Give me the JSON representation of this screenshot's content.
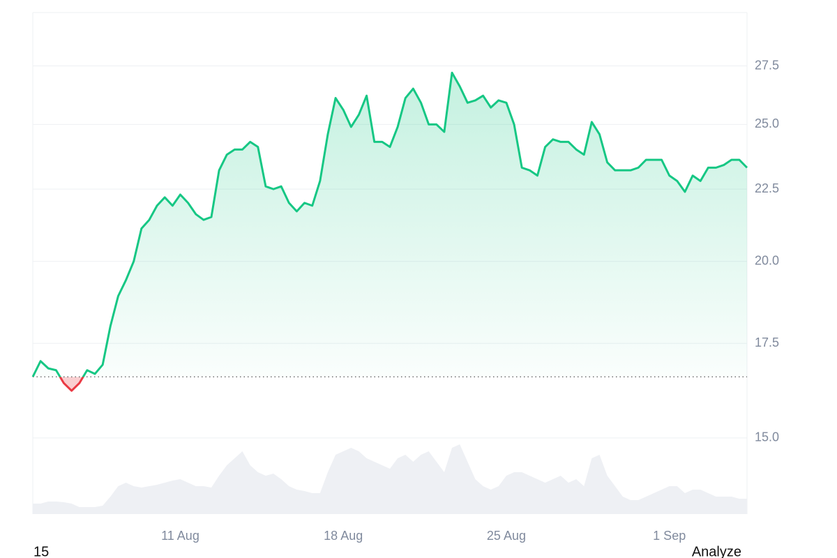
{
  "chart_data": {
    "type": "line",
    "log_scale": true,
    "grid": true,
    "color": "#16c784",
    "down_color": "#ea3943",
    "volume_color": "#eef0f4",
    "baseline": 16.57,
    "categories": [
      null,
      null,
      null,
      null,
      null,
      null,
      null,
      null,
      null,
      null,
      null,
      null,
      null,
      null,
      null,
      null,
      null,
      null,
      null,
      "11 Aug",
      null,
      null,
      null,
      null,
      null,
      null,
      null,
      null,
      null,
      null,
      null,
      null,
      null,
      null,
      null,
      null,
      null,
      null,
      null,
      null,
      "18 Aug",
      null,
      null,
      null,
      null,
      null,
      null,
      null,
      null,
      null,
      null,
      null,
      null,
      null,
      null,
      null,
      null,
      null,
      null,
      null,
      null,
      "25 Aug",
      null,
      null,
      null,
      null,
      null,
      null,
      null,
      null,
      null,
      null,
      null,
      null,
      null,
      null,
      null,
      null,
      null,
      null,
      null,
      null,
      "1 Sep",
      null,
      null,
      null,
      null,
      null,
      null,
      null,
      null,
      null,
      null
    ],
    "values": [
      16.57,
      17.0,
      16.8,
      16.75,
      16.4,
      16.2,
      16.4,
      16.75,
      16.65,
      16.9,
      18.0,
      18.9,
      19.4,
      20.0,
      21.1,
      21.4,
      21.9,
      22.2,
      21.9,
      22.3,
      22.0,
      21.6,
      21.4,
      21.5,
      23.2,
      23.8,
      24.0,
      24.0,
      24.3,
      24.1,
      22.6,
      22.5,
      22.6,
      22.0,
      21.7,
      22.0,
      21.9,
      22.8,
      24.6,
      26.1,
      25.6,
      24.9,
      25.4,
      26.2,
      24.3,
      24.3,
      24.1,
      24.9,
      26.1,
      26.5,
      25.9,
      25.0,
      25.0,
      24.7,
      27.2,
      26.6,
      25.9,
      26.0,
      26.2,
      25.7,
      26.0,
      25.9,
      25.0,
      23.3,
      23.2,
      23.0,
      24.1,
      24.4,
      24.3,
      24.3,
      24.0,
      23.8,
      25.1,
      24.6,
      23.5,
      23.2,
      23.2,
      23.2,
      23.3,
      23.6,
      23.6,
      23.6,
      23.0,
      22.8,
      22.4,
      23.0,
      22.8,
      23.3,
      23.3,
      23.4,
      23.6,
      23.6,
      23.3
    ],
    "volume": [
      15,
      15,
      18,
      18,
      17,
      15,
      10,
      10,
      10,
      12,
      25,
      40,
      45,
      40,
      38,
      40,
      42,
      45,
      48,
      50,
      45,
      40,
      40,
      38,
      55,
      70,
      80,
      90,
      70,
      60,
      55,
      58,
      50,
      40,
      35,
      33,
      30,
      30,
      60,
      85,
      90,
      95,
      90,
      80,
      75,
      70,
      65,
      80,
      85,
      75,
      85,
      90,
      75,
      60,
      95,
      100,
      75,
      50,
      40,
      35,
      40,
      55,
      60,
      60,
      55,
      50,
      45,
      50,
      55,
      45,
      50,
      40,
      80,
      85,
      55,
      40,
      25,
      20,
      20,
      25,
      30,
      35,
      40,
      40,
      30,
      35,
      35,
      30,
      25,
      25,
      25,
      22,
      22
    ],
    "ylim": [
      13.25,
      30
    ],
    "yticks": [
      {
        "value": 15,
        "label": "15.0"
      },
      17.5,
      {
        "value": 20,
        "label": "20.0"
      },
      22.5,
      {
        "value": 25,
        "label": "25.0"
      },
      27.5
    ]
  },
  "footer": {
    "left": "15",
    "right": "Analyze"
  }
}
